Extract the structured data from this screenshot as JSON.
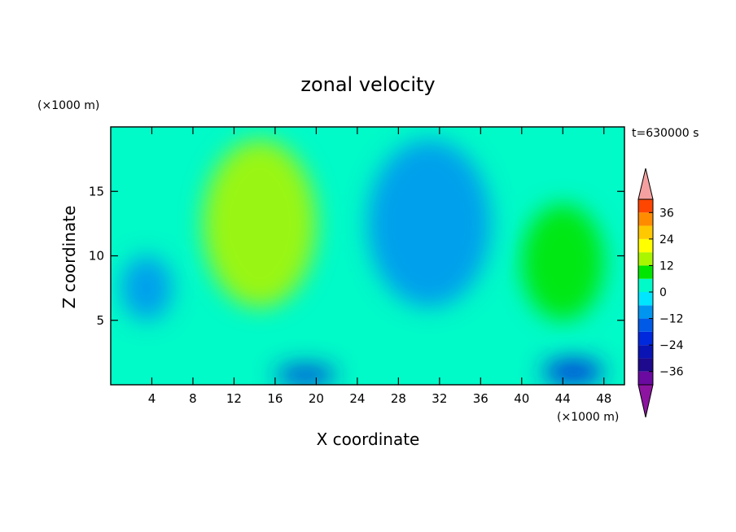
{
  "chart_data": {
    "type": "heatmap",
    "title": "zonal velocity",
    "time_label": "t=630000 s",
    "xlabel": "X coordinate",
    "ylabel": "Z coordinate",
    "x_unit_label": "(×1000 m)",
    "y_unit_label": "(×1000 m)",
    "xlim": [
      0,
      50
    ],
    "ylim": [
      0,
      20
    ],
    "x_ticks": [
      4,
      8,
      12,
      16,
      20,
      24,
      28,
      32,
      36,
      40,
      44,
      48
    ],
    "y_ticks": [
      5,
      10,
      15
    ],
    "colorbar": {
      "levels": [
        -42,
        -36,
        -30,
        -24,
        -18,
        -12,
        -6,
        0,
        6,
        12,
        18,
        24,
        30,
        36,
        42
      ],
      "tick_values": [
        36,
        24,
        12,
        0,
        -12,
        -24,
        -36
      ],
      "colors": [
        "#6a0aa0",
        "#1e0a8c",
        "#0a14b4",
        "#0028dc",
        "#005ae6",
        "#0096f0",
        "#00e6ff",
        "#00fac8",
        "#00e600",
        "#aaf500",
        "#ffff00",
        "#ffc800",
        "#ff8c00",
        "#ff4600",
        "#ff1400"
      ],
      "over_color": "#f5a0a0",
      "under_color": "#8c14a0"
    },
    "regions": [
      {
        "label": "upper-left positive zone",
        "x": [
          9,
          20
        ],
        "z": [
          6,
          19
        ],
        "u_peak": 12
      },
      {
        "label": "upper-middle negative zone",
        "x": [
          25,
          37
        ],
        "z": [
          6,
          19
        ],
        "u_peak": -10
      },
      {
        "label": "right positive zone",
        "x": [
          40,
          48
        ],
        "z": [
          5,
          14
        ],
        "u_peak": 8
      },
      {
        "label": "left negative zone",
        "x": [
          1,
          6
        ],
        "z": [
          5,
          10
        ],
        "u_peak": -9
      },
      {
        "label": "bottom-middle negative zone",
        "x": [
          16,
          22
        ],
        "z": [
          0,
          1.5
        ],
        "u_peak": -20
      },
      {
        "label": "bottom-right negative zone",
        "x": [
          42,
          48
        ],
        "z": [
          0,
          2
        ],
        "u_peak": -24
      }
    ]
  }
}
